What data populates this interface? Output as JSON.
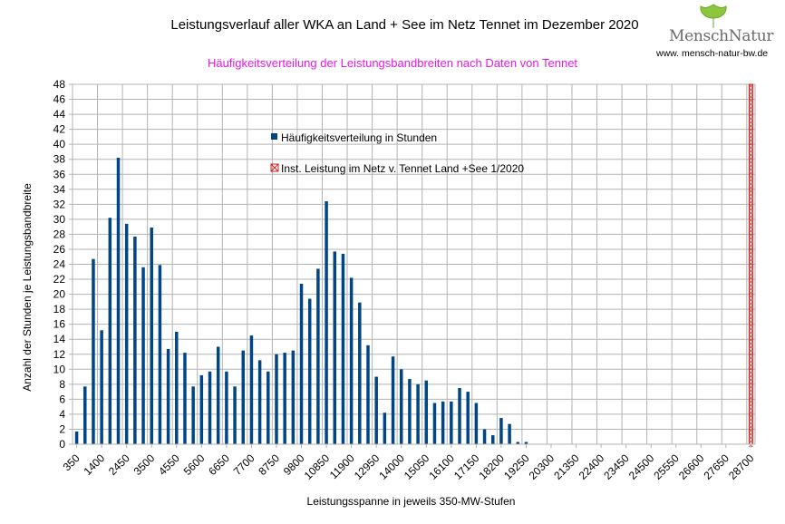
{
  "header": {
    "title": "Leistungsverlauf aller WKA an Land + See im Netz Tennet im Dezember 2020",
    "subtitle": "Häufigkeitsverteilung der Leistungsbandbreiten nach Daten von Tennet",
    "logo_text": "MenschNatur",
    "logo_url": "www. mensch-natur-bw.de"
  },
  "colors": {
    "bar": "#004586",
    "marker": "#c9211e",
    "subtitle": "#e619e6",
    "grid": "#b3b3b3"
  },
  "chart_data": {
    "type": "bar",
    "title": "Leistungsverlauf aller WKA an Land + See im Netz Tennet im Dezember 2020",
    "subtitle": "Häufigkeitsverteilung der Leistungsbandbreiten nach Daten von Tennet",
    "xlabel": "Leistungsspanne in jeweils 350-MW-Stufen",
    "ylabel": "Anzahl der Stunden je Leistungsbandbreite",
    "ylim": [
      0,
      48
    ],
    "y_ticks": [
      0,
      2,
      4,
      6,
      8,
      10,
      12,
      14,
      16,
      18,
      20,
      22,
      24,
      26,
      28,
      30,
      32,
      34,
      36,
      38,
      40,
      42,
      44,
      46,
      48
    ],
    "x_tick_labels": [
      "350",
      "1400",
      "2450",
      "3500",
      "4550",
      "5600",
      "6650",
      "7700",
      "8750",
      "9800",
      "10850",
      "11900",
      "12950",
      "14000",
      "15050",
      "16100",
      "17150",
      "18200",
      "19250",
      "20300",
      "21350",
      "22400",
      "23450",
      "24500",
      "25550",
      "26600",
      "27650",
      "28700"
    ],
    "category_start": 350,
    "category_step": 350,
    "category_count": 82,
    "series": [
      {
        "name": "Häufigkeitsverteilung in Stunden",
        "values": [
          1.7,
          7.7,
          24.7,
          15.2,
          30.2,
          38.2,
          29.4,
          27.7,
          23.6,
          28.9,
          23.9,
          12.7,
          15.0,
          12.2,
          7.7,
          9.2,
          9.7,
          13.0,
          9.7,
          7.7,
          12.5,
          14.5,
          11.2,
          9.7,
          12.0,
          12.2,
          12.5,
          21.4,
          19.4,
          23.4,
          32.4,
          25.7,
          25.4,
          22.2,
          18.9,
          13.2,
          9.0,
          4.2,
          11.7,
          10.0,
          8.7,
          8.0,
          8.5,
          5.5,
          5.7,
          5.7,
          7.5,
          7.0,
          5.5,
          2.0,
          1.2,
          3.5,
          2.7,
          0.3,
          0.3,
          0,
          0,
          0,
          0,
          0,
          0,
          0,
          0,
          0,
          0,
          0,
          0,
          0,
          0,
          0,
          0,
          0,
          0,
          0,
          0,
          0,
          0,
          0,
          0,
          0,
          0,
          0
        ]
      },
      {
        "name": "Inst. Leistung im Netz v. Tennet  Land +See 1/2020",
        "type": "marker-column",
        "x_value": 28700
      }
    ],
    "legend": [
      "Häufigkeitsverteilung in Stunden",
      "Inst. Leistung im Netz v. Tennet  Land +See 1/2020"
    ],
    "legend_position": "inside-top-center",
    "grid": true
  }
}
